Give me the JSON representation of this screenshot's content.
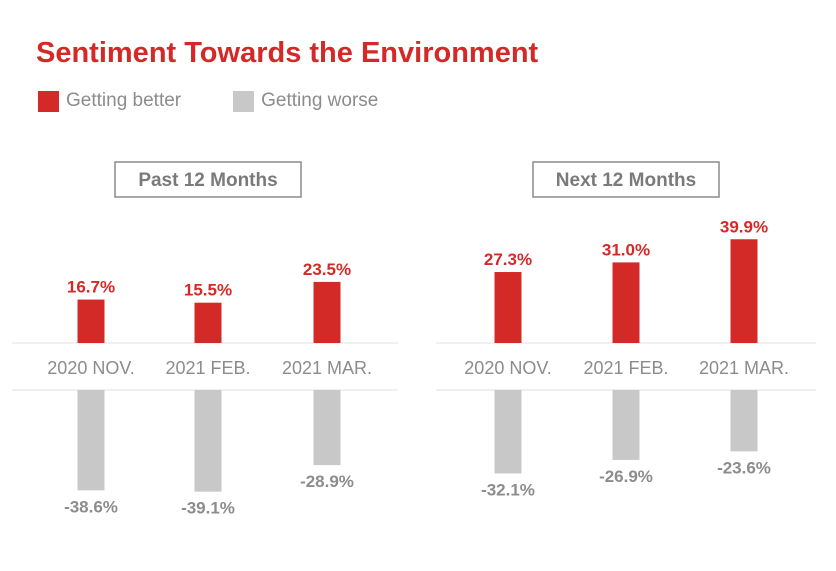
{
  "title": "Sentiment Towards the Environment",
  "colors": {
    "better": "#d42a27",
    "worse": "#c8c8c8",
    "axis_text": "#8c8c8c",
    "frame": "#8c8c8c"
  },
  "legend": [
    {
      "label": "Getting better",
      "color": "#d42a27"
    },
    {
      "label": "Getting worse",
      "color": "#c8c8c8"
    }
  ],
  "chart_data": [
    {
      "type": "bar",
      "title": "Past 12 Months",
      "categories": [
        "2020 NOV.",
        "2021 FEB.",
        "2021 MAR."
      ],
      "series": [
        {
          "name": "Getting better",
          "values": [
            16.7,
            15.5,
            23.5
          ],
          "labels": [
            "16.7%",
            "15.5%",
            "23.5%"
          ]
        },
        {
          "name": "Getting worse",
          "values": [
            -38.6,
            -39.1,
            -28.9
          ],
          "labels": [
            "-38.6%",
            "-39.1%",
            "-28.9%"
          ]
        }
      ]
    },
    {
      "type": "bar",
      "title": "Next 12 Months",
      "categories": [
        "2020 NOV.",
        "2021 FEB.",
        "2021 MAR."
      ],
      "series": [
        {
          "name": "Getting better",
          "values": [
            27.3,
            31.0,
            39.9
          ],
          "labels": [
            "27.3%",
            "31.0%",
            "39.9%"
          ]
        },
        {
          "name": "Getting worse",
          "values": [
            -32.1,
            -26.9,
            -23.6
          ],
          "labels": [
            "-32.1%",
            "-26.9%",
            "-23.6%"
          ]
        }
      ]
    }
  ]
}
